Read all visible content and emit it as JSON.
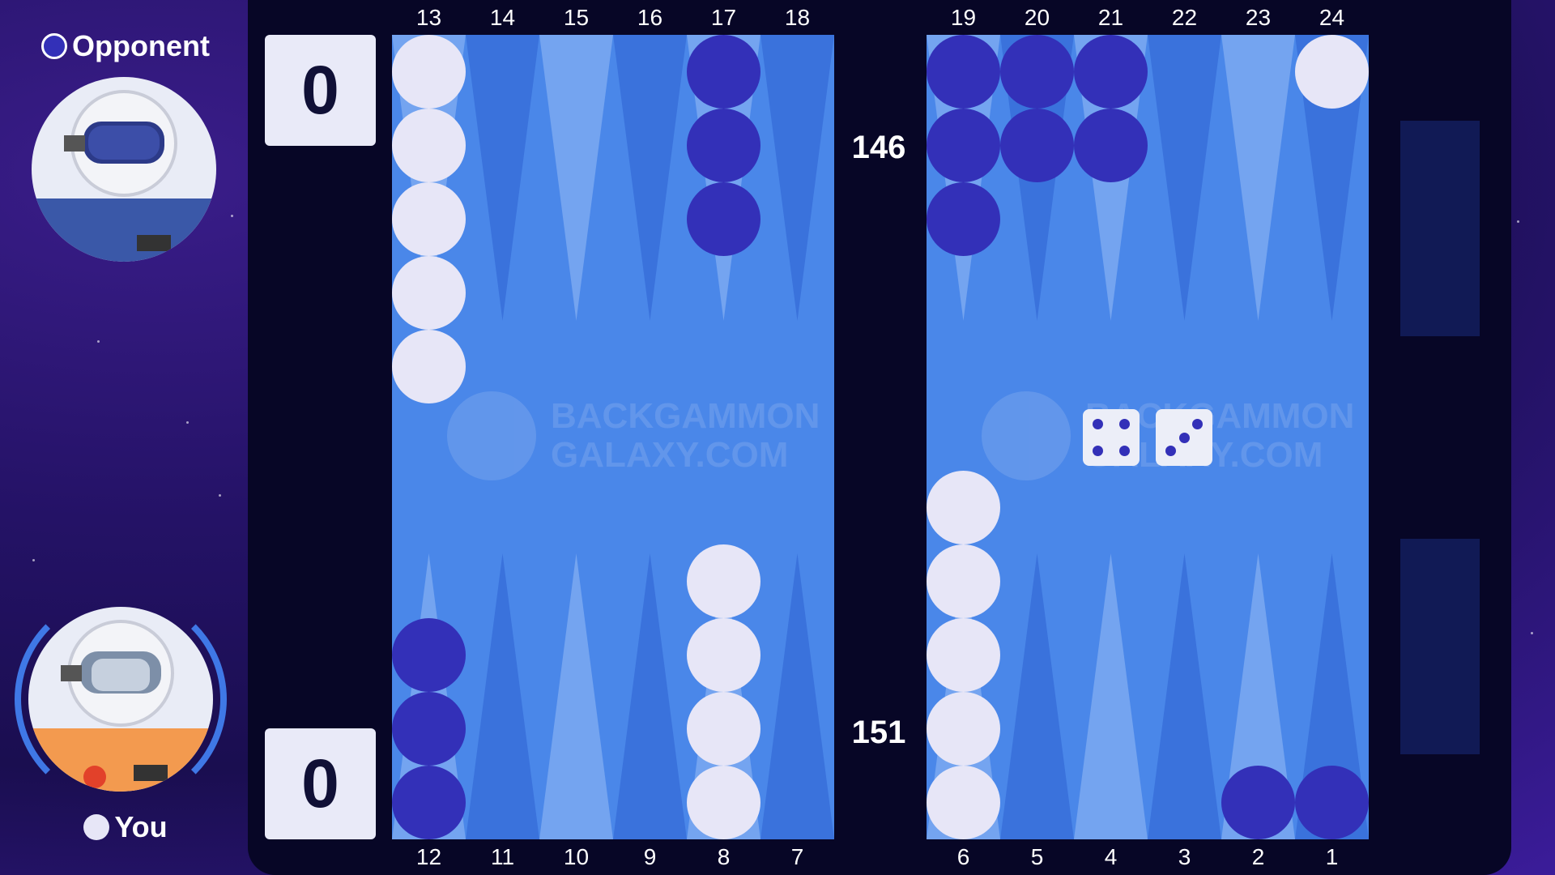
{
  "opponent": {
    "label": "Opponent",
    "color": "#3330b8"
  },
  "you": {
    "label": "You",
    "color": "#e7e6f7"
  },
  "scores": {
    "opponent": "0",
    "you": "0"
  },
  "pip_counts": {
    "top": "146",
    "bottom": "151"
  },
  "point_numbers": {
    "top": [
      "13",
      "14",
      "15",
      "16",
      "17",
      "18",
      "19",
      "20",
      "21",
      "22",
      "23",
      "24"
    ],
    "bottom": [
      "12",
      "11",
      "10",
      "9",
      "8",
      "7",
      "6",
      "5",
      "4",
      "3",
      "2",
      "1"
    ]
  },
  "watermark": {
    "line1": "BACKGAMMON",
    "line2": "GALAXY.COM"
  },
  "dice": [
    4,
    3
  ],
  "checkers": {
    "13": {
      "color": "white",
      "count": 5
    },
    "17": {
      "color": "blue",
      "count": 3
    },
    "19": {
      "color": "blue",
      "count": 3
    },
    "20": {
      "color": "blue",
      "count": 2
    },
    "21": {
      "color": "blue",
      "count": 2
    },
    "24": {
      "color": "white",
      "count": 1
    },
    "12": {
      "color": "blue",
      "count": 3
    },
    "8": {
      "color": "white",
      "count": 4
    },
    "6": {
      "color": "white",
      "count": 5
    },
    "2": {
      "color": "blue",
      "count": 1
    },
    "1": {
      "color": "blue",
      "count": 1
    }
  },
  "colors": {
    "board": "#4a87e9",
    "point_light": "#74a4f0",
    "point_dark": "#3a72dc",
    "frame": "#070626",
    "tray": "#111a55"
  }
}
